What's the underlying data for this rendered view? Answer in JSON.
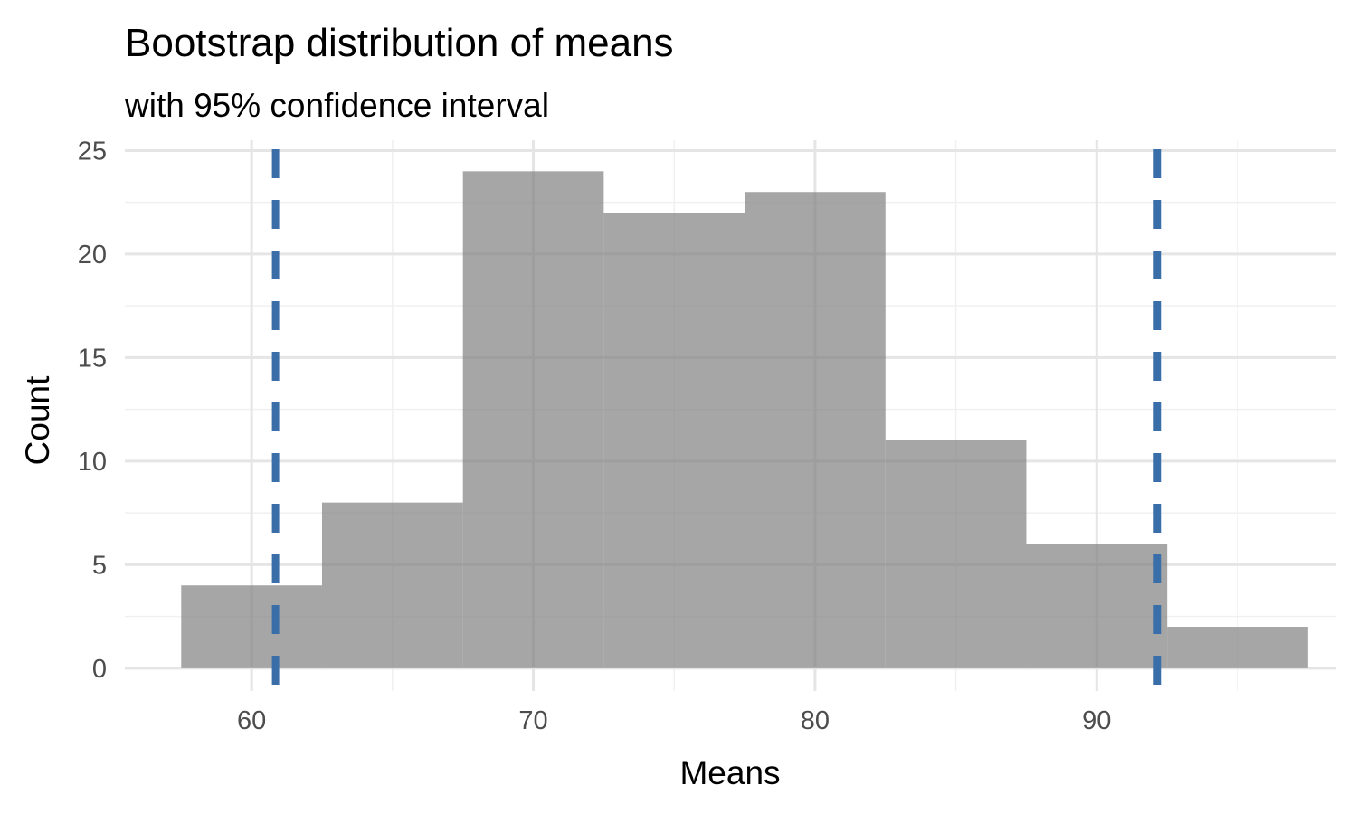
{
  "chart_data": {
    "type": "bar",
    "title": "Bootstrap distribution of means",
    "subtitle": "with 95% confidence interval",
    "xlabel": "Means",
    "ylabel": "Count",
    "xlim": [
      55.5,
      98.5
    ],
    "ylim": [
      -1.1,
      25.5
    ],
    "x_ticks": [
      60,
      70,
      80,
      90
    ],
    "y_ticks": [
      0,
      5,
      10,
      15,
      20,
      25
    ],
    "x_tick_labels": [
      "60",
      "70",
      "80",
      "90"
    ],
    "y_tick_labels": [
      "0",
      "5",
      "10",
      "15",
      "20",
      "25"
    ],
    "bin_width": 5,
    "bins": [
      {
        "x_min": 57.5,
        "x_max": 62.5,
        "count": 4
      },
      {
        "x_min": 62.5,
        "x_max": 67.5,
        "count": 8
      },
      {
        "x_min": 67.5,
        "x_max": 72.5,
        "count": 24
      },
      {
        "x_min": 72.5,
        "x_max": 77.5,
        "count": 22
      },
      {
        "x_min": 77.5,
        "x_max": 82.5,
        "count": 23
      },
      {
        "x_min": 82.5,
        "x_max": 87.5,
        "count": 11
      },
      {
        "x_min": 87.5,
        "x_max": 92.5,
        "count": 6
      },
      {
        "x_min": 92.5,
        "x_max": 97.5,
        "count": 2
      }
    ],
    "confidence_interval": {
      "lower": 60.85,
      "upper": 92.15
    },
    "grid": true,
    "colors": {
      "bar_fill": "#808080",
      "bar_opacity": 0.7,
      "ci_line": "#3a6ea8",
      "grid_major": "#e5e5e5",
      "grid_minor": "#f0f0f0"
    }
  }
}
